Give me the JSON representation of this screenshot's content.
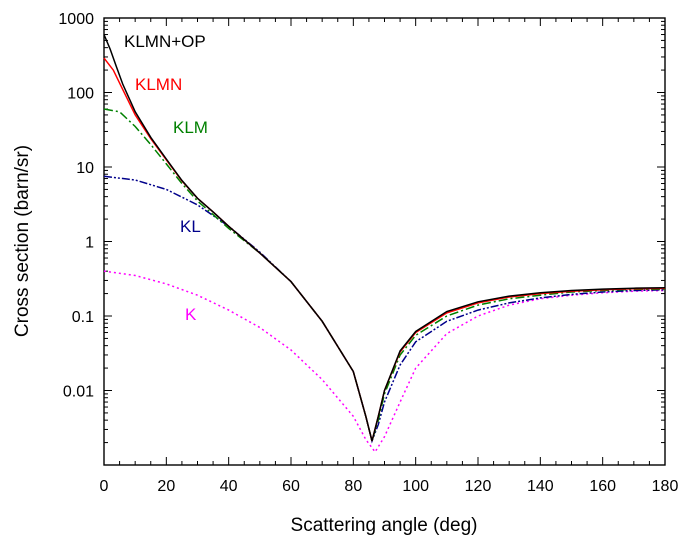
{
  "chart_data": {
    "type": "line",
    "xlabel": "Scattering angle (deg)",
    "ylabel": "Cross section (barn/sr)",
    "xlim": [
      0,
      180
    ],
    "ylim": [
      0.001,
      1000
    ],
    "yscale": "log",
    "x_ticks": [
      "0",
      "20",
      "40",
      "60",
      "80",
      "100",
      "120",
      "140",
      "160",
      "180"
    ],
    "y_ticks": [
      "0.01",
      "0.1",
      "1",
      "10",
      "100",
      "1000"
    ],
    "grid": false,
    "series": [
      {
        "name": "K",
        "color": "#ff00ff",
        "style": "dotted",
        "points": [
          [
            0,
            0.4
          ],
          [
            10,
            0.35
          ],
          [
            20,
            0.27
          ],
          [
            30,
            0.19
          ],
          [
            40,
            0.12
          ],
          [
            50,
            0.07
          ],
          [
            60,
            0.035
          ],
          [
            70,
            0.014
          ],
          [
            80,
            0.0045
          ],
          [
            84,
            0.0022
          ],
          [
            87,
            0.0015
          ],
          [
            90,
            0.0024
          ],
          [
            95,
            0.007
          ],
          [
            100,
            0.02
          ],
          [
            110,
            0.058
          ],
          [
            120,
            0.1
          ],
          [
            130,
            0.14
          ],
          [
            140,
            0.17
          ],
          [
            150,
            0.19
          ],
          [
            160,
            0.205
          ],
          [
            170,
            0.215
          ],
          [
            180,
            0.22
          ]
        ]
      },
      {
        "name": "KL",
        "color": "#00008b",
        "style": "dashdotdot",
        "points": [
          [
            0,
            7.5
          ],
          [
            10,
            6.7
          ],
          [
            20,
            5.0
          ],
          [
            30,
            3.1
          ],
          [
            40,
            1.6
          ],
          [
            50,
            0.72
          ],
          [
            60,
            0.29
          ],
          [
            70,
            0.085
          ],
          [
            80,
            0.018
          ],
          [
            84,
            0.0045
          ],
          [
            86,
            0.0021
          ],
          [
            88,
            0.0035
          ],
          [
            90,
            0.007
          ],
          [
            95,
            0.022
          ],
          [
            100,
            0.045
          ],
          [
            110,
            0.085
          ],
          [
            120,
            0.12
          ],
          [
            130,
            0.15
          ],
          [
            140,
            0.175
          ],
          [
            150,
            0.195
          ],
          [
            160,
            0.21
          ],
          [
            170,
            0.22
          ],
          [
            180,
            0.225
          ]
        ]
      },
      {
        "name": "KLM",
        "color": "#008000",
        "style": "dashdot",
        "points": [
          [
            0,
            60
          ],
          [
            5,
            55
          ],
          [
            10,
            35
          ],
          [
            15,
            20
          ],
          [
            20,
            11
          ],
          [
            25,
            6
          ],
          [
            30,
            3.5
          ],
          [
            35,
            2.3
          ],
          [
            40,
            1.5
          ],
          [
            50,
            0.7
          ],
          [
            60,
            0.29
          ],
          [
            70,
            0.085
          ],
          [
            80,
            0.018
          ],
          [
            84,
            0.0045
          ],
          [
            86,
            0.0021
          ],
          [
            88,
            0.004
          ],
          [
            90,
            0.009
          ],
          [
            95,
            0.03
          ],
          [
            100,
            0.055
          ],
          [
            110,
            0.1
          ],
          [
            120,
            0.14
          ],
          [
            130,
            0.17
          ],
          [
            140,
            0.19
          ],
          [
            150,
            0.21
          ],
          [
            160,
            0.22
          ],
          [
            170,
            0.228
          ],
          [
            180,
            0.23
          ]
        ]
      },
      {
        "name": "KLMN",
        "color": "#ff0000",
        "style": "solid",
        "points": [
          [
            0,
            290
          ],
          [
            3,
            200
          ],
          [
            6,
            110
          ],
          [
            10,
            50
          ],
          [
            15,
            24
          ],
          [
            20,
            12.5
          ],
          [
            25,
            6.5
          ],
          [
            30,
            3.8
          ],
          [
            35,
            2.5
          ],
          [
            40,
            1.6
          ],
          [
            50,
            0.7
          ],
          [
            60,
            0.29
          ],
          [
            70,
            0.085
          ],
          [
            80,
            0.018
          ],
          [
            84,
            0.0045
          ],
          [
            86,
            0.0021
          ],
          [
            88,
            0.0045
          ],
          [
            90,
            0.01
          ],
          [
            95,
            0.033
          ],
          [
            100,
            0.06
          ],
          [
            110,
            0.11
          ],
          [
            120,
            0.15
          ],
          [
            130,
            0.18
          ],
          [
            140,
            0.2
          ],
          [
            150,
            0.215
          ],
          [
            160,
            0.225
          ],
          [
            170,
            0.232
          ],
          [
            180,
            0.235
          ]
        ]
      },
      {
        "name": "KLMN+OP",
        "color": "#000000",
        "style": "solid",
        "points": [
          [
            0,
            600
          ],
          [
            2,
            380
          ],
          [
            4,
            220
          ],
          [
            6,
            130
          ],
          [
            10,
            55
          ],
          [
            15,
            25
          ],
          [
            20,
            12.8
          ],
          [
            25,
            6.6
          ],
          [
            30,
            3.8
          ],
          [
            35,
            2.5
          ],
          [
            40,
            1.6
          ],
          [
            50,
            0.7
          ],
          [
            60,
            0.29
          ],
          [
            70,
            0.085
          ],
          [
            80,
            0.018
          ],
          [
            84,
            0.0045
          ],
          [
            86,
            0.0021
          ],
          [
            88,
            0.0045
          ],
          [
            90,
            0.01
          ],
          [
            95,
            0.034
          ],
          [
            100,
            0.062
          ],
          [
            110,
            0.115
          ],
          [
            120,
            0.155
          ],
          [
            130,
            0.185
          ],
          [
            140,
            0.205
          ],
          [
            150,
            0.22
          ],
          [
            160,
            0.23
          ],
          [
            170,
            0.236
          ],
          [
            180,
            0.24
          ]
        ]
      }
    ]
  }
}
